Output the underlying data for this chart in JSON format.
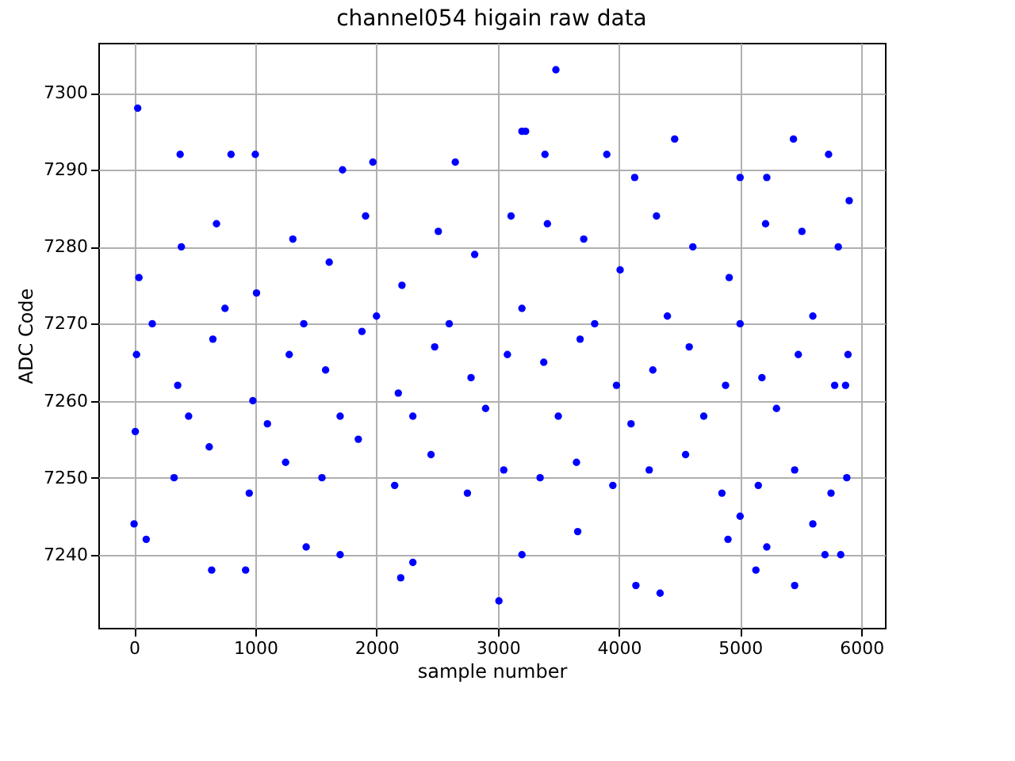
{
  "chart_data": {
    "type": "scatter",
    "title": "channel054 higain raw data",
    "xlabel": "sample number",
    "ylabel": "ADC Code",
    "x": [
      30,
      380,
      800,
      1000,
      1720,
      1970,
      2650,
      3200,
      3230,
      3390,
      3480,
      3900,
      4130,
      4460,
      5000,
      5220,
      5440,
      5730,
      0,
      100,
      640,
      920,
      1420,
      1700,
      2200,
      2300,
      3010,
      3200,
      3660,
      4140,
      4340,
      4900,
      5000,
      5130,
      5220,
      5450,
      5600,
      5700,
      5830,
      10,
      20,
      40,
      330,
      360,
      390,
      620,
      650,
      680,
      950,
      980,
      1010,
      1250,
      1280,
      1310,
      1550,
      1580,
      1610,
      1850,
      1880,
      1910,
      2150,
      2180,
      2210,
      2450,
      2480,
      2510,
      2750,
      2780,
      2810,
      3050,
      3080,
      3110,
      3350,
      3380,
      3410,
      3650,
      3680,
      3710,
      3950,
      3980,
      4010,
      4250,
      4280,
      4310,
      4550,
      4580,
      4610,
      4850,
      4880,
      4910,
      5150,
      5180,
      5210,
      5450,
      5480,
      5510,
      5750,
      5780,
      5810,
      5880,
      5890,
      5900,
      150,
      450,
      750,
      1100,
      1400,
      1700,
      2000,
      2300,
      2600,
      2900,
      3200,
      3500,
      3800,
      4100,
      4400,
      4700,
      5000,
      5300,
      5600,
      5870
    ],
    "series": [
      {
        "color": "#0000ff",
        "values": [
          7298,
          7292,
          7292,
          7292,
          7290,
          7291,
          7291,
          7295,
          7295,
          7292,
          7303,
          7292,
          7289,
          7294,
          7289,
          7289,
          7294,
          7292,
          7244,
          7242,
          7238,
          7238,
          7241,
          7240,
          7237,
          7239,
          7234,
          7240,
          7243,
          7236,
          7235,
          7242,
          7245,
          7238,
          7241,
          7236,
          7244,
          7240,
          7240,
          7256,
          7266,
          7276,
          7250,
          7262,
          7280,
          7254,
          7268,
          7283,
          7248,
          7260,
          7274,
          7252,
          7266,
          7281,
          7250,
          7264,
          7278,
          7255,
          7269,
          7284,
          7249,
          7261,
          7275,
          7253,
          7267,
          7282,
          7248,
          7263,
          7279,
          7251,
          7266,
          7284,
          7250,
          7265,
          7283,
          7252,
          7268,
          7281,
          7249,
          7262,
          7277,
          7251,
          7264,
          7284,
          7253,
          7267,
          7280,
          7248,
          7262,
          7276,
          7249,
          7263,
          7283,
          7251,
          7266,
          7282,
          7248,
          7262,
          7280,
          7250,
          7266,
          7286,
          7270,
          7258,
          7272,
          7257,
          7270,
          7258,
          7271,
          7258,
          7270,
          7259,
          7272,
          7258,
          7270,
          7257,
          7271,
          7258,
          7270,
          7259,
          7271,
          7262
        ]
      }
    ],
    "xlim": [
      -295,
      6195
    ],
    "ylim": [
      7230.5,
      7306.5
    ],
    "xticks": [
      0,
      1000,
      2000,
      3000,
      4000,
      5000,
      6000
    ],
    "yticks": [
      7240,
      7250,
      7260,
      7270,
      7280,
      7290,
      7300
    ],
    "grid": true,
    "marker": "circle"
  }
}
